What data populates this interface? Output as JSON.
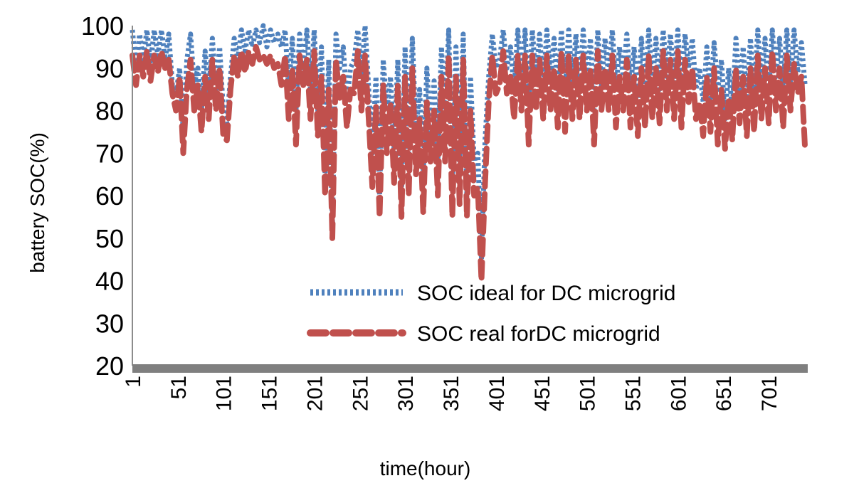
{
  "chart_data": {
    "type": "line",
    "xlabel": "time(hour)",
    "ylabel": "battery SOC(%)",
    "xlim": [
      1,
      744
    ],
    "ylim": [
      20,
      100
    ],
    "yticks": [
      "100",
      "90",
      "80",
      "70",
      "60",
      "50",
      "40",
      "30",
      "20"
    ],
    "xticks": [
      "1",
      "51",
      "101",
      "151",
      "201",
      "251",
      "301",
      "351",
      "401",
      "451",
      "501",
      "551",
      "601",
      "651",
      "701"
    ],
    "legend_position": "lower-right inside plot",
    "series": [
      {
        "name": "SOC ideal for DC microgrid",
        "color": "#4f81bd",
        "style": "dotted",
        "x": [
          1,
          5,
          9,
          13,
          17,
          21,
          25,
          29,
          33,
          37,
          41,
          45,
          49,
          53,
          57,
          61,
          65,
          69,
          73,
          77,
          81,
          85,
          89,
          93,
          97,
          101,
          105,
          109,
          113,
          117,
          121,
          125,
          129,
          133,
          137,
          141,
          145,
          149,
          153,
          157,
          161,
          165,
          169,
          173,
          177,
          181,
          185,
          189,
          193,
          197,
          201,
          205,
          209,
          213,
          217,
          221,
          225,
          229,
          233,
          237,
          241,
          245,
          249,
          253,
          257,
          261,
          265,
          269,
          273,
          277,
          281,
          285,
          289,
          293,
          297,
          301,
          305,
          309,
          313,
          317,
          321,
          325,
          329,
          333,
          337,
          341,
          345,
          349,
          353,
          357,
          361,
          365,
          369,
          373,
          377,
          381,
          385,
          389,
          393,
          397,
          401,
          405,
          409,
          413,
          417,
          421,
          425,
          429,
          433,
          437,
          441,
          445,
          449,
          453,
          457,
          461,
          465,
          469,
          473,
          477,
          481,
          485,
          489,
          493,
          497,
          501,
          505,
          509,
          513,
          517,
          521,
          525,
          529,
          533,
          537,
          541,
          545,
          549,
          553,
          557,
          561,
          565,
          569,
          573,
          577,
          581,
          585,
          589,
          593,
          597,
          601,
          605,
          609,
          613,
          617,
          621,
          625,
          629,
          633,
          637,
          641,
          645,
          649,
          653,
          657,
          661,
          665,
          669,
          673,
          677,
          681,
          685,
          689,
          693,
          697,
          701,
          705,
          709,
          713,
          717,
          721,
          725,
          729,
          733,
          737,
          741
        ],
        "y": [
          99,
          90,
          98,
          92,
          99,
          91,
          99,
          93,
          99,
          92,
          98,
          86,
          84,
          90,
          75,
          92,
          98,
          86,
          90,
          80,
          94,
          84,
          97,
          85,
          95,
          80,
          77,
          88,
          97,
          92,
          99,
          94,
          99,
          95,
          99,
          96,
          100,
          95,
          99,
          96,
          98,
          95,
          99,
          85,
          97,
          80,
          98,
          90,
          99,
          85,
          99,
          80,
          95,
          65,
          92,
          52,
          98,
          90,
          95,
          82,
          90,
          92,
          99,
          88,
          100,
          85,
          70,
          88,
          60,
          92,
          80,
          88,
          70,
          92,
          60,
          95,
          70,
          97,
          75,
          85,
          65,
          90,
          75,
          87,
          68,
          95,
          78,
          99,
          62,
          95,
          67,
          98,
          60,
          88,
          68,
          70,
          45,
          73,
          88,
          98,
          90,
          92,
          99,
          90,
          95,
          85,
          99,
          88,
          99,
          82,
          99,
          87,
          98,
          85,
          99,
          88,
          97,
          85,
          99,
          84,
          99,
          86,
          98,
          85,
          99,
          87,
          97,
          80,
          99,
          86,
          97,
          88,
          99,
          85,
          95,
          88,
          98,
          85,
          95,
          82,
          97,
          84,
          99,
          86,
          97,
          85,
          99,
          88,
          98,
          86,
          99,
          85,
          98,
          90,
          97,
          85,
          90,
          82,
          95,
          83,
          96,
          85,
          92,
          78,
          90,
          80,
          97,
          85,
          95,
          82,
          97,
          83,
          99,
          86,
          97,
          84,
          99,
          88,
          97,
          85,
          99,
          87,
          99,
          89,
          96,
          86
        ]
      },
      {
        "name": "SOC real forDC microgrid",
        "color": "#c0504d",
        "style": "dashed",
        "x": [
          1,
          5,
          9,
          13,
          17,
          21,
          25,
          29,
          33,
          37,
          41,
          45,
          49,
          53,
          57,
          61,
          65,
          69,
          73,
          77,
          81,
          85,
          89,
          93,
          97,
          101,
          105,
          109,
          113,
          117,
          121,
          125,
          129,
          133,
          137,
          141,
          145,
          149,
          153,
          157,
          161,
          165,
          169,
          173,
          177,
          181,
          185,
          189,
          193,
          197,
          201,
          205,
          209,
          213,
          217,
          221,
          225,
          229,
          233,
          237,
          241,
          245,
          249,
          253,
          257,
          261,
          265,
          269,
          273,
          277,
          281,
          285,
          289,
          293,
          297,
          301,
          305,
          309,
          313,
          317,
          321,
          325,
          329,
          333,
          337,
          341,
          345,
          349,
          353,
          357,
          361,
          365,
          369,
          373,
          377,
          381,
          385,
          389,
          393,
          397,
          401,
          405,
          409,
          413,
          417,
          421,
          425,
          429,
          433,
          437,
          441,
          445,
          449,
          453,
          457,
          461,
          465,
          469,
          473,
          477,
          481,
          485,
          489,
          493,
          497,
          501,
          505,
          509,
          513,
          517,
          521,
          525,
          529,
          533,
          537,
          541,
          545,
          549,
          553,
          557,
          561,
          565,
          569,
          573,
          577,
          581,
          585,
          589,
          593,
          597,
          601,
          605,
          609,
          613,
          617,
          621,
          625,
          629,
          633,
          637,
          641,
          645,
          649,
          653,
          657,
          661,
          665,
          669,
          673,
          677,
          681,
          685,
          689,
          693,
          697,
          701,
          705,
          709,
          713,
          717,
          721,
          725,
          729,
          733,
          737,
          741
        ],
        "y": [
          93,
          86,
          93,
          88,
          94,
          87,
          93,
          89,
          94,
          90,
          92,
          84,
          80,
          88,
          70,
          85,
          92,
          80,
          86,
          75,
          88,
          78,
          92,
          80,
          90,
          74,
          73,
          85,
          93,
          88,
          94,
          89,
          94,
          91,
          95,
          92,
          93,
          91,
          93,
          90,
          91,
          86,
          93,
          78,
          90,
          72,
          93,
          86,
          92,
          78,
          94,
          74,
          88,
          60,
          85,
          50,
          92,
          83,
          88,
          76,
          85,
          84,
          94,
          80,
          93,
          78,
          62,
          81,
          55,
          86,
          70,
          82,
          63,
          86,
          55,
          88,
          60,
          90,
          65,
          78,
          56,
          82,
          68,
          80,
          60,
          88,
          68,
          93,
          55,
          88,
          58,
          92,
          55,
          80,
          60,
          62,
          40,
          63,
          82,
          93,
          84,
          86,
          94,
          84,
          88,
          78,
          93,
          80,
          93,
          72,
          93,
          80,
          92,
          78,
          93,
          80,
          90,
          76,
          94,
          75,
          93,
          78,
          92,
          78,
          93,
          80,
          90,
          72,
          94,
          80,
          90,
          80,
          93,
          76,
          88,
          80,
          92,
          76,
          88,
          74,
          90,
          76,
          93,
          78,
          90,
          77,
          94,
          80,
          92,
          78,
          94,
          76,
          92,
          82,
          90,
          78,
          82,
          74,
          88,
          75,
          90,
          72,
          85,
          71,
          83,
          73,
          90,
          77,
          88,
          74,
          90,
          75,
          93,
          78,
          90,
          77,
          94,
          80,
          90,
          76,
          93,
          80,
          91,
          84,
          88,
          71
        ]
      }
    ]
  }
}
